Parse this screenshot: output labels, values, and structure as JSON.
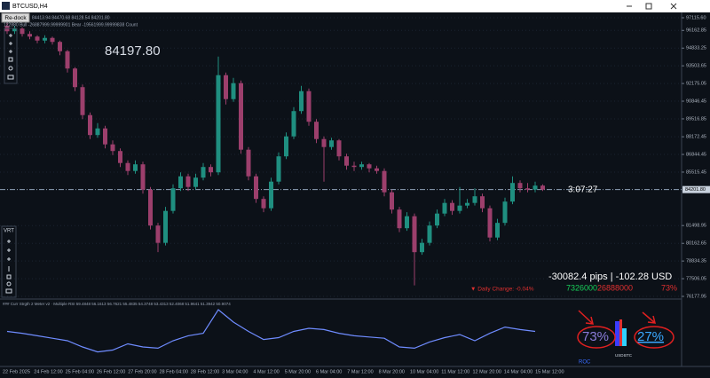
{
  "window": {
    "title": "BTCUSD,H4",
    "redock": "Re-dock",
    "vrt": "VRT"
  },
  "chart": {
    "type": "candlestick",
    "info": "84413.94 84470.68 84128.54 84201.80",
    "bull_bear": "122880 Bull -26887999.99999901 Bear -19561999.99999838 Count",
    "big_price": "84197.80",
    "timer": "3:07:27",
    "pips": "-30082.4 pips | -102.28 USD",
    "bull_count": "7326000",
    "bear_count": "26888000",
    "bear_pct": "73%",
    "daily_change": "▼ Daily Change: -0.04%",
    "up_color": "#1f8f80",
    "down_color": "#9c3f6c",
    "grid": true,
    "ylim": [
      76044,
      97516
    ],
    "yticks": [
      {
        "value": 97115.6,
        "label": "97115.60"
      },
      {
        "value": 96162.85,
        "label": "96162.85"
      },
      {
        "value": 94833.25,
        "label": "94833.25"
      },
      {
        "value": 93503.65,
        "label": "93503.65"
      },
      {
        "value": 92175.05,
        "label": "92175.05"
      },
      {
        "value": 90846.45,
        "label": "90846.45"
      },
      {
        "value": 89516.85,
        "label": "89516.85"
      },
      {
        "value": 88172.45,
        "label": "88172.45"
      },
      {
        "value": 86844.45,
        "label": "86844.45"
      },
      {
        "value": 85515.45,
        "label": "85515.45"
      },
      {
        "value": 81498.95,
        "label": "81498.95"
      },
      {
        "value": 80162.65,
        "label": "80162.65"
      },
      {
        "value": 78834.35,
        "label": "78834.35"
      },
      {
        "value": 77506.05,
        "label": "77506.05"
      },
      {
        "value": 76177.95,
        "label": "76177.95"
      }
    ],
    "current_price": {
      "value": 84201.8,
      "label": "84201.80"
    },
    "time_labels": [
      "22 Feb 2025",
      "24 Feb 12:00",
      "25 Feb 04:00",
      "26 Feb 12:00",
      "27 Feb 20:00",
      "28 Feb 04:00",
      "28 Feb 12:00",
      "3 Mar 04:00",
      "4 Mar 12:00",
      "5 Mar 20:00",
      "6 Mar 04:00",
      "7 Mar 12:00",
      "8 Mar 20:00",
      "10 Mar 04:00",
      "11 Mar 12:00",
      "12 Mar 20:00",
      "14 Mar 04:00",
      "15 Mar 12:00"
    ],
    "candles": [
      [
        96500,
        96700,
        95900,
        96100
      ],
      [
        96100,
        96500,
        95900,
        96300
      ],
      [
        96300,
        96400,
        95700,
        95900
      ],
      [
        95900,
        96100,
        95500,
        95700
      ],
      [
        95700,
        95800,
        95200,
        95400
      ],
      [
        95400,
        95800,
        95200,
        95600
      ],
      [
        95600,
        95700,
        95100,
        95300
      ],
      [
        95300,
        95400,
        94300,
        94600
      ],
      [
        94600,
        94700,
        93000,
        93300
      ],
      [
        93300,
        93400,
        91600,
        91900
      ],
      [
        91900,
        92100,
        89500,
        89800
      ],
      [
        89800,
        90000,
        88000,
        88300
      ],
      [
        88300,
        89200,
        88100,
        88800
      ],
      [
        88800,
        89000,
        87300,
        87600
      ],
      [
        87600,
        87900,
        86800,
        87100
      ],
      [
        87100,
        87300,
        85900,
        86200
      ],
      [
        86200,
        86400,
        85300,
        85600
      ],
      [
        85600,
        86400,
        85400,
        86100
      ],
      [
        86100,
        86300,
        83900,
        84200
      ],
      [
        84200,
        84400,
        81200,
        81500
      ],
      [
        81500,
        81700,
        79500,
        80200
      ],
      [
        80200,
        82900,
        80000,
        82600
      ],
      [
        82600,
        84600,
        82400,
        84300
      ],
      [
        84300,
        85500,
        84100,
        85200
      ],
      [
        85200,
        85400,
        84100,
        84400
      ],
      [
        84400,
        85400,
        84200,
        85100
      ],
      [
        85100,
        86200,
        84900,
        85900
      ],
      [
        85900,
        86100,
        85200,
        85500
      ],
      [
        85500,
        94200,
        85300,
        92800
      ],
      [
        92800,
        93000,
        90600,
        91000
      ],
      [
        91000,
        92600,
        90800,
        92200
      ],
      [
        92200,
        92400,
        86900,
        87200
      ],
      [
        87200,
        87400,
        84900,
        85200
      ],
      [
        85200,
        85400,
        83200,
        83500
      ],
      [
        83500,
        83700,
        82500,
        82800
      ],
      [
        82800,
        85100,
        82600,
        84800
      ],
      [
        84800,
        87000,
        84600,
        86700
      ],
      [
        86700,
        88500,
        86500,
        88200
      ],
      [
        88200,
        90400,
        88000,
        90100
      ],
      [
        90100,
        92000,
        89900,
        91600
      ],
      [
        91600,
        91800,
        89000,
        89300
      ],
      [
        89300,
        89500,
        87700,
        88000
      ],
      [
        88000,
        88200,
        84800,
        87400
      ],
      [
        87400,
        88100,
        87200,
        87900
      ],
      [
        87900,
        88000,
        86400,
        86700
      ],
      [
        86700,
        86900,
        85700,
        86000
      ],
      [
        86000,
        86300,
        85600,
        85900
      ],
      [
        85900,
        86300,
        85700,
        86100
      ],
      [
        86100,
        86200,
        85500,
        85800
      ],
      [
        85800,
        86000,
        85400,
        85600
      ],
      [
        85600,
        85800,
        83700,
        84000
      ],
      [
        84000,
        84200,
        82400,
        82700
      ],
      [
        82700,
        82900,
        81000,
        81300
      ],
      [
        81300,
        82500,
        81100,
        82200
      ],
      [
        82200,
        82400,
        77000,
        79500
      ],
      [
        79500,
        80500,
        79300,
        80200
      ],
      [
        80200,
        81800,
        80000,
        81500
      ],
      [
        81500,
        82700,
        81300,
        82400
      ],
      [
        82400,
        83500,
        82200,
        83200
      ],
      [
        83200,
        83400,
        82300,
        82600
      ],
      [
        82600,
        84400,
        82400,
        83000
      ],
      [
        83000,
        83500,
        82800,
        83200
      ],
      [
        83200,
        84300,
        83000,
        83700
      ],
      [
        83700,
        83900,
        82500,
        82800
      ],
      [
        82800,
        83000,
        80300,
        80600
      ],
      [
        80600,
        82000,
        80400,
        81700
      ],
      [
        81700,
        83600,
        81500,
        83300
      ],
      [
        83300,
        85200,
        83100,
        84700
      ],
      [
        84700,
        84900,
        84000,
        84300
      ],
      [
        84300,
        84700,
        84000,
        84200
      ],
      [
        84200,
        84800,
        84000,
        84500
      ],
      [
        84500,
        84600,
        84100,
        84200
      ]
    ]
  },
  "indicator": {
    "type": "line",
    "title": "### Curr Strgth 2 Meter v2 · Multiple RSI 59.4848 56.1613 56.7621 55.4835 54.3748 53.4313 52.4068 51.9641 51.3942 50.9074",
    "color": "#6f8cff",
    "ylim": [
      0,
      100
    ],
    "values": [
      55,
      52,
      48,
      44,
      40,
      30,
      22,
      25,
      35,
      30,
      28,
      40,
      48,
      52,
      90,
      70,
      55,
      42,
      45,
      55,
      60,
      58,
      52,
      48,
      46,
      44,
      30,
      28,
      38,
      45,
      50,
      40,
      52,
      62,
      58,
      55
    ],
    "meter": {
      "left_pct": "73%",
      "right_pct": "27%",
      "left": "USD",
      "right": "BTC",
      "label": "ROC"
    }
  }
}
